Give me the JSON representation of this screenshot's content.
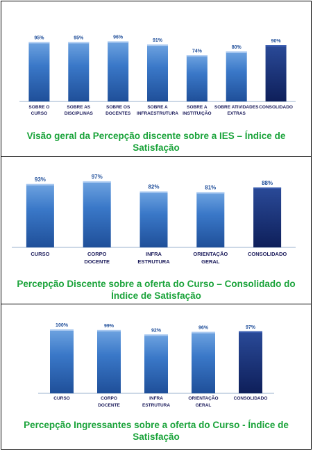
{
  "colors": {
    "bar_top": "#6ea3e0",
    "bar_mid": "#3a78c8",
    "bar_bottom": "#1f4f99",
    "consolidated_top": "#2a4a98",
    "consolidated_bottom": "#0e1f5a",
    "value_label": "#1f4e9a",
    "category_label": "#1a1a5a",
    "caption": "#1aa33a"
  },
  "chart_data": [
    {
      "type": "bar",
      "categories": [
        "SOBRE O\nCURSO",
        "SOBRE AS\nDISCIPLINAS",
        "SOBRE OS\nDOCENTES",
        "SOBRE A\nINFRAESTRUTURA",
        "SOBRE A\nINSTITUIÇÃO",
        "SOBRE ATIVIDADES\nEXTRAS",
        "CONSOLIDADO"
      ],
      "values": [
        95,
        95,
        96,
        91,
        74,
        80,
        90
      ],
      "labels": [
        "95%",
        "95%",
        "96%",
        "91%",
        "74%",
        "80%",
        "90%"
      ],
      "highlight_index": 6,
      "title": "Visão geral da Percepção discente sobre a IES – Índice de Satisfação",
      "ylim": [
        0,
        100
      ],
      "grid": false
    },
    {
      "type": "bar",
      "categories": [
        "CURSO",
        "CORPO\nDOCENTE",
        "INFRA\nESTRUTURA",
        "ORIENTAÇÃO\nGERAL",
        "CONSOLIDADO"
      ],
      "values": [
        93,
        97,
        82,
        81,
        88
      ],
      "labels": [
        "93%",
        "97%",
        "82%",
        "81%",
        "88%"
      ],
      "highlight_index": 4,
      "title": "Percepção Discente sobre a oferta do Curso – Consolidado do Índice de Satisfação",
      "ylim": [
        0,
        100
      ],
      "grid": false
    },
    {
      "type": "bar",
      "categories": [
        "CURSO",
        "CORPO\nDOCENTE",
        "INFRA\nESTRUTURA",
        "ORIENTAÇÃO\nGERAL",
        "CONSOLIDADO"
      ],
      "values": [
        100,
        99,
        92,
        96,
        97
      ],
      "labels": [
        "100%",
        "99%",
        "92%",
        "96%",
        "97%"
      ],
      "highlight_index": 4,
      "title": "Percepção Ingressantes  sobre a oferta do Curso - Índice de Satisfação",
      "ylim": [
        0,
        100
      ],
      "grid": false
    }
  ]
}
